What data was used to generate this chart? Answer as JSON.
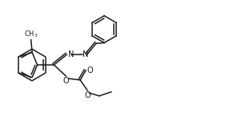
{
  "bg_color": "#ffffff",
  "line_color": "#1a1a1a",
  "line_width": 1.1,
  "font_size": 6.5,
  "fig_width": 2.82,
  "fig_height": 1.66,
  "dpi": 100,
  "xlim": [
    0,
    28
  ],
  "ylim": [
    0,
    16.6
  ]
}
